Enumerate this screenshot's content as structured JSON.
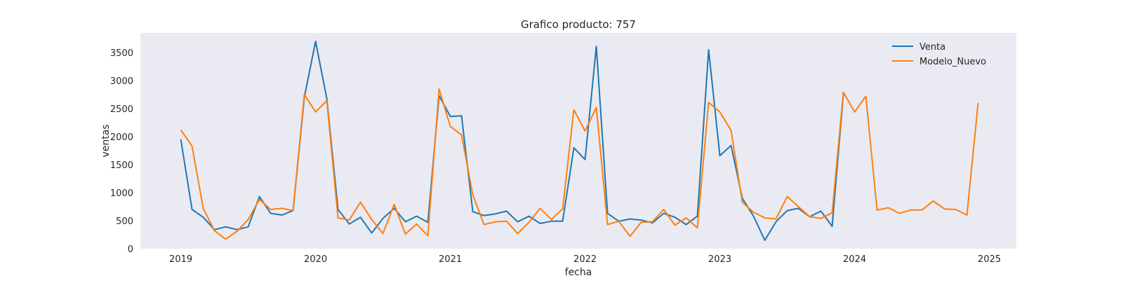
{
  "chart_data": {
    "type": "line",
    "title": "Grafico producto: 757",
    "xlabel": "fecha",
    "ylabel": "ventas",
    "xlim": [
      2018.7,
      2025.2
    ],
    "ylim": [
      0,
      3850
    ],
    "x_ticks": [
      2019,
      2020,
      2021,
      2022,
      2023,
      2024,
      2025
    ],
    "y_ticks": [
      0,
      500,
      1000,
      1500,
      2000,
      2500,
      3000,
      3500
    ],
    "grid": false,
    "legend": "top-right",
    "x": [
      "2019-01",
      "2019-02",
      "2019-03",
      "2019-04",
      "2019-05",
      "2019-06",
      "2019-07",
      "2019-08",
      "2019-09",
      "2019-10",
      "2019-11",
      "2019-12",
      "2020-01",
      "2020-02",
      "2020-03",
      "2020-04",
      "2020-05",
      "2020-06",
      "2020-07",
      "2020-08",
      "2020-09",
      "2020-10",
      "2020-11",
      "2020-12",
      "2021-01",
      "2021-02",
      "2021-03",
      "2021-04",
      "2021-05",
      "2021-06",
      "2021-07",
      "2021-08",
      "2021-09",
      "2021-10",
      "2021-11",
      "2021-12",
      "2022-01",
      "2022-02",
      "2022-03",
      "2022-04",
      "2022-05",
      "2022-06",
      "2022-07",
      "2022-08",
      "2022-09",
      "2022-10",
      "2022-11",
      "2022-12",
      "2023-01",
      "2023-02",
      "2023-03",
      "2023-04",
      "2023-05",
      "2023-06",
      "2023-07",
      "2023-08",
      "2023-09",
      "2023-10",
      "2023-11",
      "2023-12",
      "2024-01",
      "2024-02",
      "2024-03",
      "2024-04",
      "2024-05",
      "2024-06",
      "2024-07",
      "2024-08",
      "2024-09",
      "2024-10",
      "2024-11",
      "2024-12"
    ],
    "series": [
      {
        "name": "Venta",
        "color": "#1f77b4",
        "values": [
          1950,
          700,
          560,
          340,
          390,
          340,
          390,
          930,
          630,
          600,
          680,
          2700,
          3700,
          2680,
          700,
          440,
          560,
          280,
          540,
          720,
          480,
          580,
          470,
          2730,
          2360,
          2370,
          660,
          590,
          620,
          670,
          480,
          580,
          450,
          490,
          490,
          1800,
          1590,
          3610,
          630,
          490,
          530,
          510,
          460,
          630,
          560,
          430,
          580,
          3550,
          1660,
          1840,
          900,
          580,
          150,
          480,
          680,
          720,
          570,
          670,
          400,
          2760,
          null,
          null,
          null,
          null,
          null,
          null,
          null,
          null,
          null,
          null,
          null,
          null
        ]
      },
      {
        "name": "Modelo_Nuevo",
        "color": "#ff7f0e",
        "values": [
          2120,
          1830,
          720,
          320,
          170,
          310,
          520,
          880,
          700,
          720,
          680,
          2750,
          2440,
          2640,
          550,
          510,
          830,
          520,
          270,
          790,
          260,
          440,
          230,
          2850,
          2180,
          2030,
          960,
          430,
          480,
          490,
          270,
          470,
          720,
          520,
          710,
          2480,
          2100,
          2520,
          430,
          490,
          220,
          470,
          480,
          700,
          420,
          550,
          370,
          2610,
          2440,
          2110,
          830,
          650,
          550,
          530,
          930,
          750,
          570,
          540,
          640,
          2790,
          2440,
          2720,
          690,
          730,
          630,
          690,
          690,
          850,
          710,
          700,
          600,
          2600
        ]
      }
    ]
  }
}
